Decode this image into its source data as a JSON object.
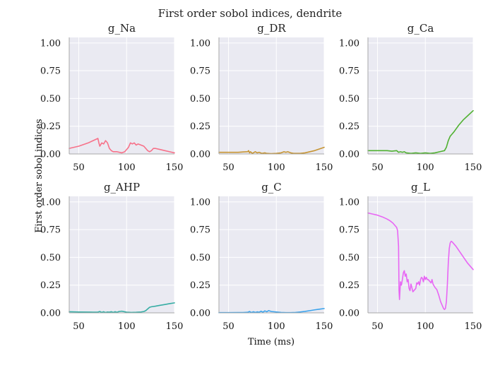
{
  "chart_data": {
    "type": "line",
    "title": "First order sobol indices, dendrite",
    "xlabel": "Time (ms)",
    "ylabel": "First order sobol indices",
    "xlim": [
      40,
      150
    ],
    "ylim": [
      0,
      1.05
    ],
    "xticks": [
      "50",
      "100",
      "150"
    ],
    "yticks": [
      "0.00",
      "0.25",
      "0.50",
      "0.75",
      "1.00"
    ],
    "grid": true,
    "panels": [
      {
        "title": "g_Na",
        "color": "#f77189",
        "x": [
          40,
          50,
          60,
          65,
          70,
          71,
          72,
          74,
          76,
          78,
          80,
          82,
          84,
          86,
          88,
          90,
          95,
          98,
          100,
          102,
          104,
          106,
          108,
          110,
          112,
          115,
          118,
          120,
          122,
          124,
          126,
          128,
          130,
          135,
          140,
          145,
          150
        ],
        "y": [
          0.05,
          0.07,
          0.1,
          0.12,
          0.14,
          0.1,
          0.07,
          0.1,
          0.09,
          0.12,
          0.1,
          0.05,
          0.03,
          0.02,
          0.02,
          0.02,
          0.01,
          0.02,
          0.04,
          0.06,
          0.1,
          0.09,
          0.1,
          0.08,
          0.09,
          0.08,
          0.07,
          0.05,
          0.03,
          0.02,
          0.03,
          0.05,
          0.05,
          0.04,
          0.03,
          0.02,
          0.01
        ]
      },
      {
        "title": "g_DR",
        "color": "#c69432",
        "x": [
          40,
          50,
          60,
          65,
          70,
          71,
          72,
          73,
          75,
          78,
          80,
          82,
          85,
          88,
          90,
          95,
          100,
          105,
          108,
          110,
          112,
          115,
          118,
          125,
          130,
          140,
          150
        ],
        "y": [
          0.015,
          0.015,
          0.015,
          0.018,
          0.02,
          0.03,
          0.01,
          0.02,
          0.005,
          0.02,
          0.01,
          0.015,
          0.005,
          0.01,
          0.005,
          0.003,
          0.005,
          0.01,
          0.02,
          0.015,
          0.02,
          0.01,
          0.005,
          0.005,
          0.01,
          0.03,
          0.06
        ]
      },
      {
        "title": "g_Ca",
        "color": "#50b131",
        "x": [
          40,
          50,
          60,
          65,
          70,
          72,
          74,
          76,
          78,
          80,
          85,
          90,
          95,
          100,
          105,
          110,
          115,
          120,
          122,
          124,
          126,
          128,
          130,
          135,
          140,
          145,
          150
        ],
        "y": [
          0.03,
          0.03,
          0.03,
          0.025,
          0.03,
          0.015,
          0.02,
          0.015,
          0.02,
          0.01,
          0.005,
          0.01,
          0.005,
          0.01,
          0.005,
          0.01,
          0.02,
          0.03,
          0.06,
          0.12,
          0.16,
          0.18,
          0.2,
          0.26,
          0.31,
          0.35,
          0.39
        ]
      },
      {
        "title": "g_AHP",
        "color": "#36ada4",
        "x": [
          40,
          50,
          60,
          65,
          70,
          72,
          74,
          76,
          78,
          80,
          82,
          84,
          86,
          88,
          90,
          92,
          95,
          100,
          105,
          110,
          115,
          118,
          120,
          122,
          124,
          126,
          130,
          135,
          140,
          145,
          150
        ],
        "y": [
          0.01,
          0.008,
          0.007,
          0.006,
          0.007,
          0.012,
          0.004,
          0.01,
          0.003,
          0.008,
          0.006,
          0.01,
          0.004,
          0.01,
          0.005,
          0.012,
          0.015,
          0.006,
          0.004,
          0.005,
          0.008,
          0.012,
          0.02,
          0.035,
          0.05,
          0.055,
          0.06,
          0.068,
          0.075,
          0.083,
          0.09
        ]
      },
      {
        "title": "g_C",
        "color": "#3ba3ec",
        "x": [
          40,
          50,
          60,
          65,
          70,
          72,
          74,
          76,
          78,
          80,
          82,
          84,
          86,
          88,
          90,
          92,
          95,
          100,
          105,
          110,
          115,
          120,
          125,
          130,
          135,
          140,
          145,
          150
        ],
        "y": [
          0.002,
          0.002,
          0.003,
          0.003,
          0.005,
          0.012,
          0.003,
          0.01,
          0.004,
          0.009,
          0.005,
          0.015,
          0.006,
          0.018,
          0.01,
          0.02,
          0.012,
          0.008,
          0.004,
          0.002,
          0.002,
          0.004,
          0.008,
          0.013,
          0.02,
          0.027,
          0.033,
          0.039
        ]
      },
      {
        "title": "g_L",
        "color": "#e866f4",
        "x": [
          40,
          45,
          50,
          55,
          60,
          63,
          66,
          68,
          70,
          71,
          72,
          72.5,
          73,
          74,
          75,
          76,
          77,
          78,
          79,
          80,
          81,
          82,
          83,
          84,
          85,
          87,
          88,
          90,
          91,
          92,
          93,
          94,
          95,
          96,
          97,
          98,
          99,
          100,
          101,
          102,
          103,
          104,
          105,
          106,
          107,
          108,
          110,
          112,
          114,
          116,
          118,
          119,
          120,
          121,
          122,
          123,
          124,
          125,
          126,
          127,
          128,
          130,
          132,
          134,
          136,
          138,
          140,
          142,
          144,
          146,
          148,
          150
        ],
        "y": [
          0.9,
          0.89,
          0.88,
          0.865,
          0.845,
          0.83,
          0.81,
          0.79,
          0.77,
          0.74,
          0.6,
          0.2,
          0.12,
          0.28,
          0.25,
          0.3,
          0.36,
          0.38,
          0.33,
          0.35,
          0.28,
          0.3,
          0.22,
          0.2,
          0.26,
          0.19,
          0.2,
          0.22,
          0.27,
          0.26,
          0.28,
          0.25,
          0.3,
          0.32,
          0.31,
          0.28,
          0.33,
          0.3,
          0.32,
          0.3,
          0.3,
          0.29,
          0.28,
          0.27,
          0.3,
          0.26,
          0.23,
          0.21,
          0.16,
          0.1,
          0.06,
          0.04,
          0.03,
          0.04,
          0.1,
          0.25,
          0.45,
          0.58,
          0.63,
          0.645,
          0.64,
          0.62,
          0.6,
          0.575,
          0.55,
          0.525,
          0.5,
          0.475,
          0.45,
          0.43,
          0.41,
          0.39
        ]
      }
    ]
  }
}
